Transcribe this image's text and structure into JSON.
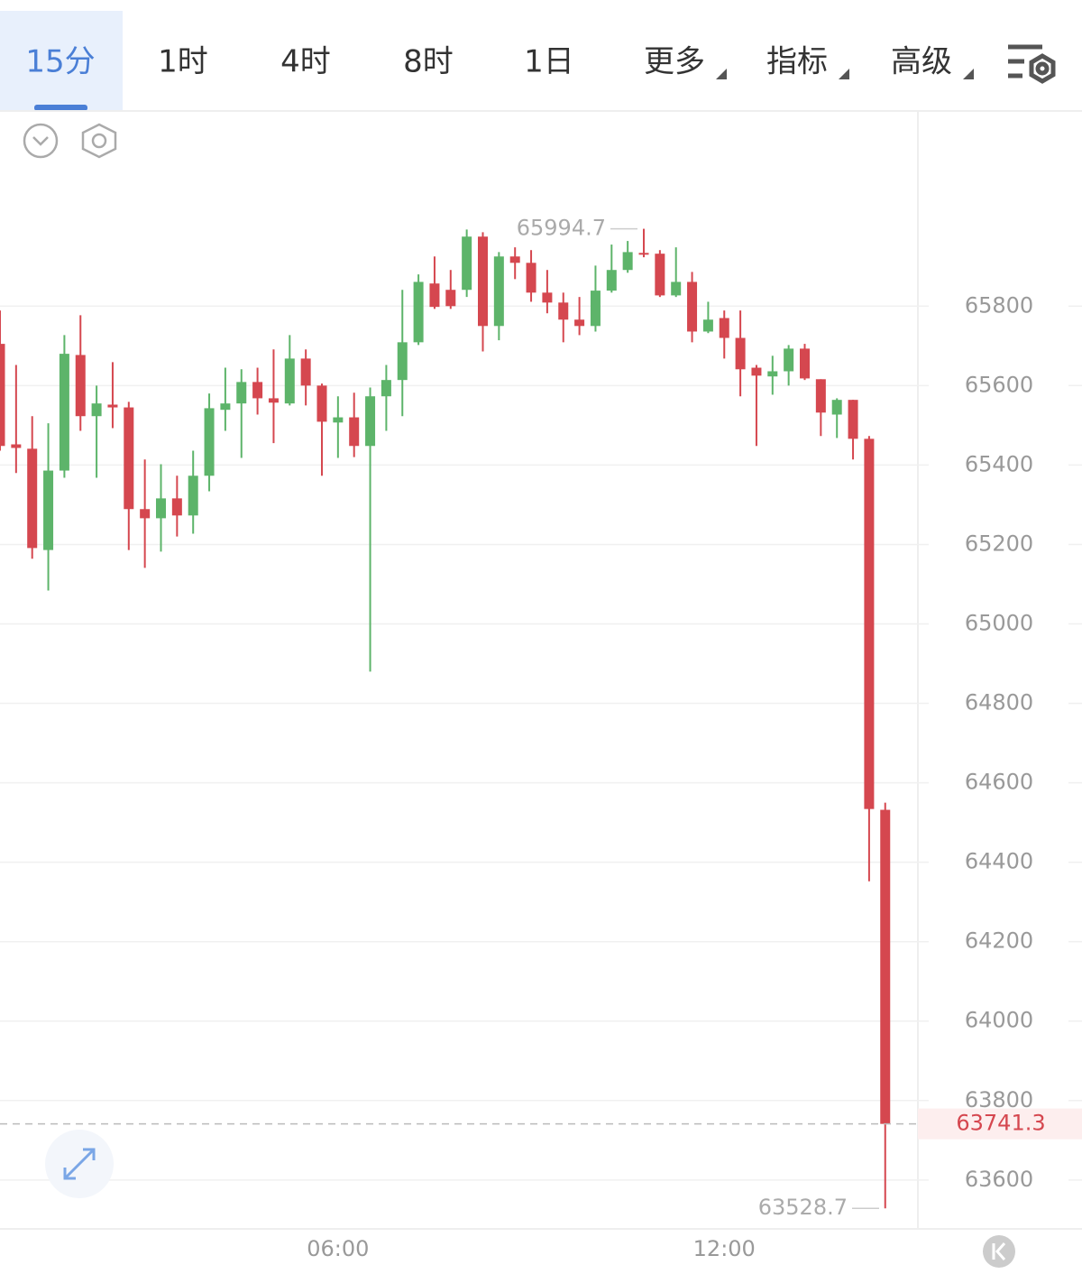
{
  "toolbar": {
    "tabs": [
      "15分",
      "1时",
      "4时",
      "8时",
      "1日",
      "更多",
      "指标",
      "高级"
    ],
    "active": 0
  },
  "chart_data": {
    "type": "candlestick",
    "categories": [
      null,
      null,
      null,
      null,
      null,
      null,
      null,
      null,
      null,
      null,
      null,
      null,
      null,
      null,
      null,
      null,
      null,
      null,
      null,
      null,
      null,
      "06:00",
      null,
      null,
      null,
      null,
      null,
      null,
      null,
      null,
      null,
      null,
      null,
      null,
      null,
      null,
      null,
      null,
      null,
      null,
      null,
      null,
      null,
      null,
      null,
      "12:00",
      null,
      null,
      null,
      null,
      null,
      null,
      null,
      null,
      null,
      null
    ],
    "open": [
      65705,
      65452,
      65441,
      65186,
      65386,
      65677,
      65523,
      65552,
      65545,
      65289,
      65266,
      65316,
      65273,
      65373,
      65539,
      65555,
      65609,
      65568,
      65555,
      65668,
      65600,
      65507,
      65520,
      65448,
      65573,
      65614,
      65709,
      65857,
      65841,
      65841,
      65975,
      65750,
      65925,
      65909,
      65834,
      65809,
      65766,
      65750,
      65839,
      65891,
      65934,
      65932,
      65827,
      65861,
      65736,
      65770,
      65720,
      65645,
      65623,
      65636,
      65693,
      65616,
      65527,
      65564,
      65466,
      64532
    ],
    "high": [
      65789,
      65652,
      65523,
      65505,
      65727,
      65777,
      65600,
      65659,
      65559,
      65414,
      65402,
      65373,
      65436,
      65580,
      65645,
      65641,
      65645,
      65691,
      65727,
      65691,
      65605,
      65573,
      65582,
      65595,
      65652,
      65841,
      65880,
      65925,
      65891,
      65993,
      65986,
      65936,
      65948,
      65941,
      65891,
      65834,
      65823,
      65902,
      65955,
      65964,
      65994.7,
      65941,
      65948,
      65886,
      65811,
      65789,
      65789,
      65652,
      65675,
      65702,
      65705,
      65616,
      65568,
      65564,
      65473,
      64550
    ],
    "low": [
      65436,
      65380,
      65164,
      65084,
      65368,
      65486,
      65368,
      65493,
      65186,
      65141,
      65182,
      65220,
      65227,
      65334,
      65486,
      65418,
      65527,
      65455,
      65550,
      65550,
      65373,
      65418,
      65420,
      64880,
      65486,
      65523,
      65702,
      65793,
      65793,
      65823,
      65686,
      65714,
      65868,
      65811,
      65782,
      65709,
      65727,
      65736,
      65834,
      65884,
      65923,
      65823,
      65823,
      65709,
      65732,
      65668,
      65573,
      65448,
      65577,
      65600,
      65614,
      65473,
      65468,
      65414,
      64352,
      63528.7
    ],
    "close": [
      65448,
      65443,
      65191,
      65386,
      65680,
      65523,
      65555,
      65545,
      65289,
      65266,
      65316,
      65273,
      65373,
      65543,
      65555,
      65609,
      65568,
      65557,
      65668,
      65600,
      65509,
      65520,
      65448,
      65573,
      65614,
      65709,
      65861,
      65798,
      65800,
      65975,
      65750,
      65925,
      65909,
      65834,
      65809,
      65766,
      65750,
      65839,
      65891,
      65936,
      65930,
      65827,
      65861,
      65736,
      65766,
      65720,
      65641,
      65625,
      65636,
      65693,
      65618,
      65532,
      65564,
      65466,
      64534,
      63741.3
    ],
    "up_color": "#5db46a",
    "down_color": "#d5474f",
    "ylim": [
      63477,
      66289
    ],
    "yticks": [
      63600,
      63800,
      64000,
      64200,
      64400,
      64600,
      64800,
      65000,
      65200,
      65400,
      65600,
      65800
    ],
    "grid": true,
    "annotations": {
      "max": 65994.7,
      "min": 63528.7,
      "last": 63741.3
    }
  }
}
